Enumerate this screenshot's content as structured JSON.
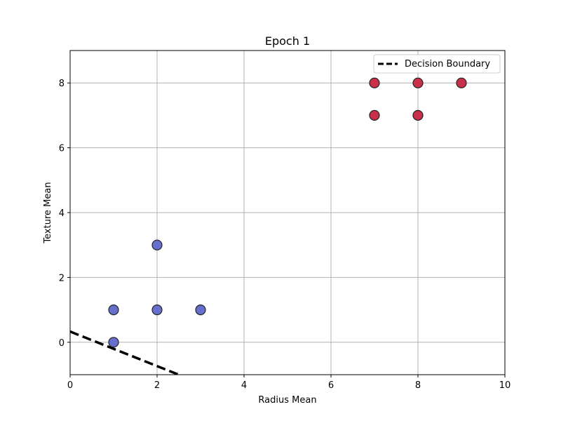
{
  "chart_data": {
    "type": "scatter",
    "title": "Epoch 1",
    "xlabel": "Radius Mean",
    "ylabel": "Texture Mean",
    "xlim": [
      0,
      10
    ],
    "ylim": [
      -1,
      9
    ],
    "xticks": [
      0,
      2,
      4,
      6,
      8,
      10
    ],
    "yticks": [
      0,
      2,
      4,
      6,
      8
    ],
    "grid": true,
    "legend_position": "top-right",
    "series": [
      {
        "color": "#6670cc",
        "points": [
          {
            "x": 1,
            "y": 0
          },
          {
            "x": 1,
            "y": 1
          },
          {
            "x": 2,
            "y": 1
          },
          {
            "x": 3,
            "y": 1
          },
          {
            "x": 2,
            "y": 3
          }
        ]
      },
      {
        "color": "#c8304a",
        "points": [
          {
            "x": 7,
            "y": 7
          },
          {
            "x": 7,
            "y": 8
          },
          {
            "x": 8,
            "y": 7
          },
          {
            "x": 8,
            "y": 8
          },
          {
            "x": 9,
            "y": 8
          }
        ]
      }
    ],
    "decision_boundary": {
      "name": "Decision Boundary",
      "style": "dashed",
      "color": "#000000",
      "points": [
        {
          "x": 0,
          "y": 0.33
        },
        {
          "x": 2.5,
          "y": -1.0
        }
      ]
    }
  }
}
